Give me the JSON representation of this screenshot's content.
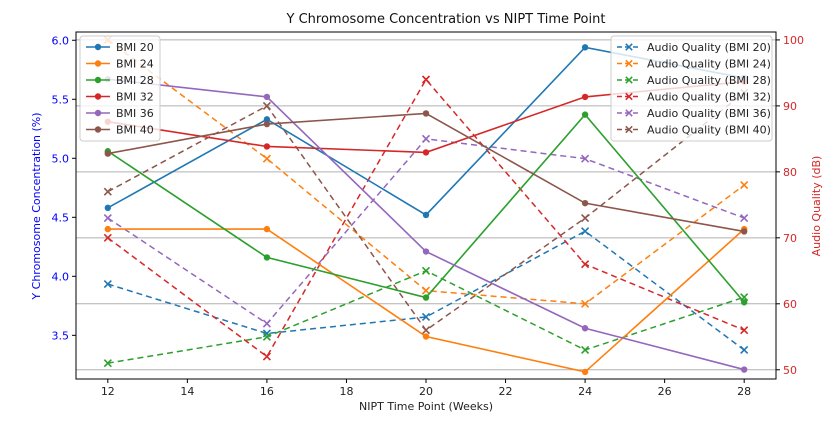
{
  "chart_data": {
    "type": "line",
    "title": "Y Chromosome Concentration vs NIPT Time Point",
    "xlabel": "NIPT Time Point (Weeks)",
    "ylabel_left": "Y Chromosome Concentration (%)",
    "ylabel_right": "Audio Quality (dB)",
    "x": [
      12,
      16,
      20,
      24,
      28
    ],
    "xlim": [
      11.2,
      28.8
    ],
    "xticks": [
      12,
      14,
      16,
      18,
      20,
      22,
      24,
      26,
      28
    ],
    "ylim_left": [
      3.13,
      6.07
    ],
    "yticks_left": [
      3.5,
      4.0,
      4.5,
      5.0,
      5.5,
      6.0
    ],
    "ylim_right": [
      48.6,
      101.2
    ],
    "yticks_right": [
      50,
      60,
      70,
      80,
      90,
      100
    ],
    "grid": "horizontal",
    "left_color": "#0000ff",
    "right_color": "#d62728",
    "series_left": [
      {
        "name": "BMI 20",
        "color": "#1f77b4",
        "values": [
          4.58,
          5.33,
          4.52,
          5.94,
          5.68
        ]
      },
      {
        "name": "BMI 24",
        "color": "#ff7f0e",
        "values": [
          4.4,
          4.4,
          3.49,
          3.19,
          4.4
        ]
      },
      {
        "name": "BMI 28",
        "color": "#2ca02c",
        "values": [
          5.06,
          4.16,
          3.82,
          5.37,
          3.78
        ]
      },
      {
        "name": "BMI 32",
        "color": "#d62728",
        "values": [
          5.31,
          5.1,
          5.05,
          5.52,
          5.65
        ]
      },
      {
        "name": "BMI 36",
        "color": "#9467bd",
        "values": [
          5.67,
          5.52,
          4.21,
          3.56,
          3.21
        ]
      },
      {
        "name": "BMI 40",
        "color": "#8c564b",
        "values": [
          5.04,
          5.29,
          5.38,
          4.62,
          4.38
        ]
      }
    ],
    "series_right": [
      {
        "name": "Audio Quality (BMI 20)",
        "color": "#1f77b4",
        "values": [
          63,
          55.5,
          58,
          71,
          53
        ]
      },
      {
        "name": "Audio Quality (BMI 24)",
        "color": "#ff7f0e",
        "values": [
          100,
          82,
          62,
          60,
          78
        ]
      },
      {
        "name": "Audio Quality (BMI 28)",
        "color": "#2ca02c",
        "values": [
          51,
          55,
          65,
          53,
          61
        ]
      },
      {
        "name": "Audio Quality (BMI 32)",
        "color": "#d62728",
        "values": [
          70,
          52,
          94,
          66,
          56
        ]
      },
      {
        "name": "Audio Quality (BMI 36)",
        "color": "#9467bd",
        "values": [
          73,
          57,
          85,
          82,
          73
        ]
      },
      {
        "name": "Audio Quality (BMI 40)",
        "color": "#8c564b",
        "values": [
          77,
          90,
          56,
          73,
          92
        ]
      }
    ]
  }
}
